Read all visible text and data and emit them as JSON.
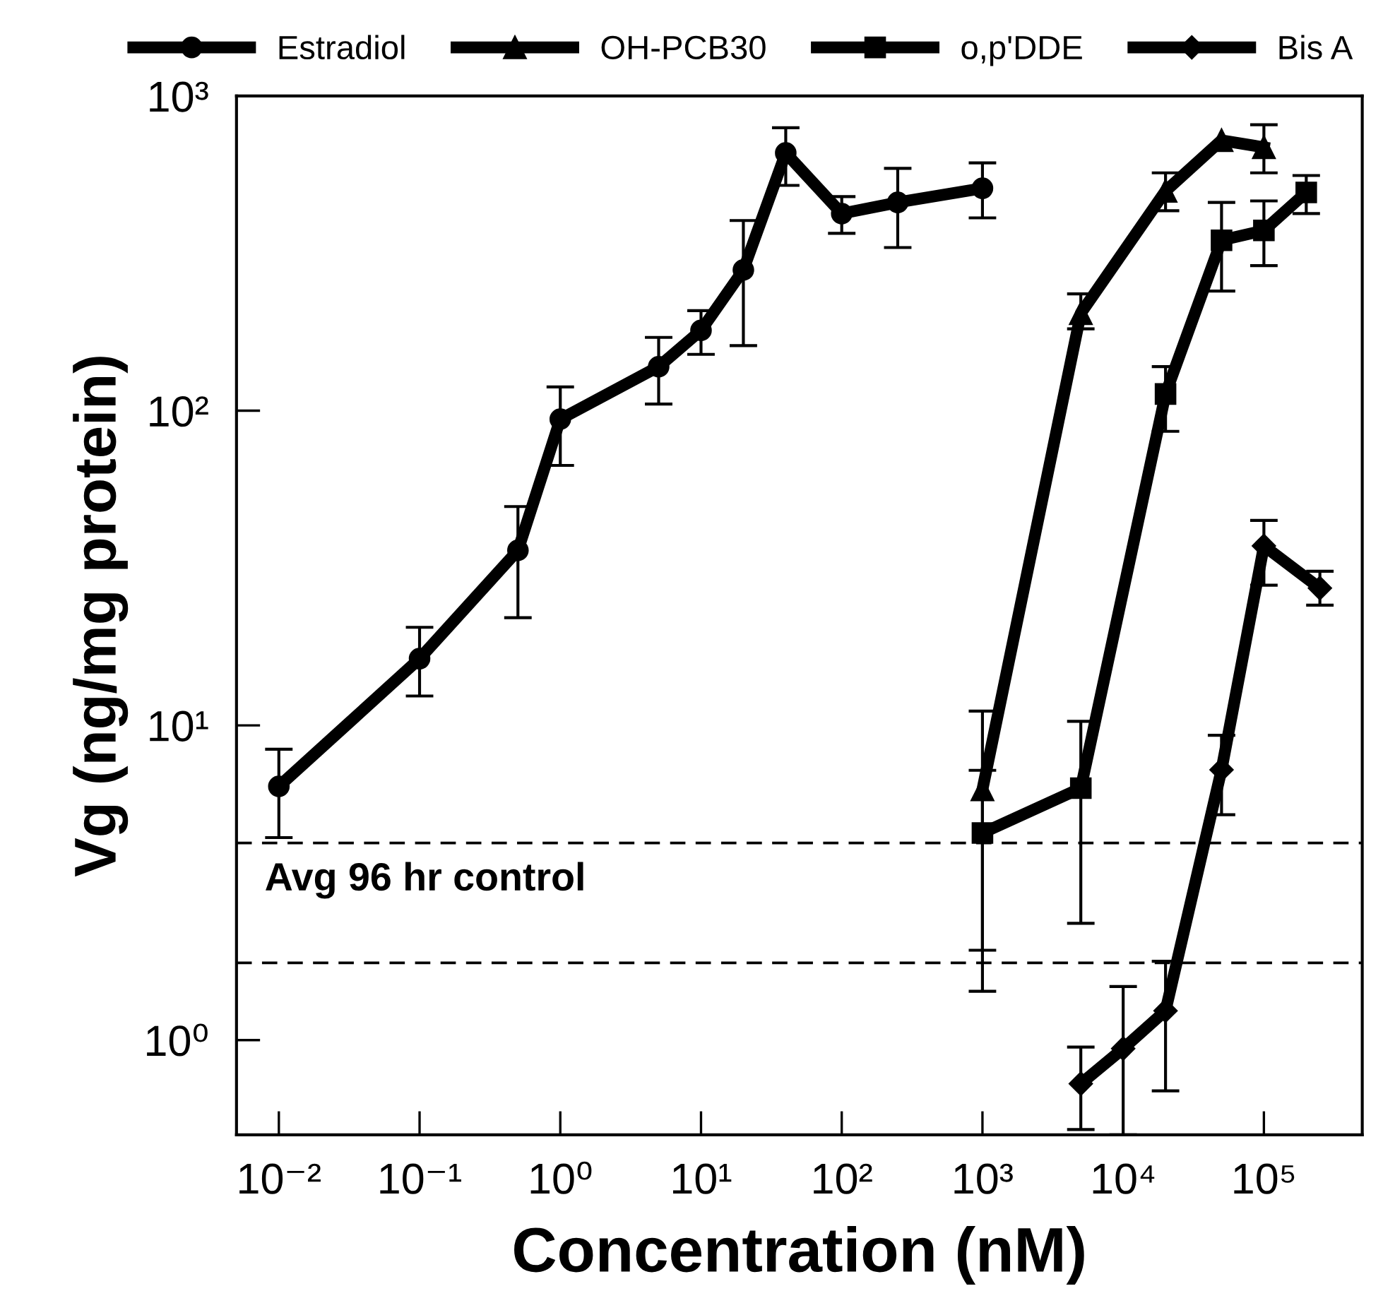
{
  "chart_data": {
    "type": "line",
    "xlabel": "Concentration (nM)",
    "ylabel": "Vg (ng/mg protein)",
    "log": "xy",
    "grid": false,
    "legend": "top",
    "line_style": "solid",
    "xlim": [
      0.005,
      500000
    ],
    "ylim": [
      0.5,
      1000
    ],
    "xticks": [
      {
        "value": 0.01,
        "label": "10⁻²"
      },
      {
        "value": 0.1,
        "label": "10⁻¹"
      },
      {
        "value": 1,
        "label": "10⁰"
      },
      {
        "value": 10,
        "label": "10¹"
      },
      {
        "value": 100,
        "label": "10²"
      },
      {
        "value": 1000,
        "label": "10³"
      },
      {
        "value": 10000,
        "label": "10⁴"
      },
      {
        "value": 100000,
        "label": "10⁵"
      }
    ],
    "yticks": [
      {
        "value": 1,
        "label": "10⁰"
      },
      {
        "value": 10,
        "label": "10¹"
      },
      {
        "value": 100,
        "label": "10²"
      },
      {
        "value": 1000,
        "label": "10³"
      }
    ],
    "series": [
      {
        "name": "Estradiol",
        "color": "#000000",
        "marker": "circle",
        "x": [
          0.01,
          0.1,
          0.5,
          1,
          5,
          10,
          20,
          40,
          100,
          250,
          1000
        ],
        "values": [
          6.4,
          16.3,
          36,
          94,
          138,
          180,
          280,
          659,
          423,
          459,
          509
        ],
        "errors": [
          [
            4.4,
            8.4
          ],
          [
            12.4,
            20.5
          ],
          [
            22,
            49.6
          ],
          [
            67,
            119
          ],
          [
            105,
            171
          ],
          [
            151,
            208
          ],
          [
            161,
            402
          ],
          [
            520,
            793
          ],
          [
            366,
            479
          ],
          [
            330,
            589
          ],
          [
            410,
            613
          ]
        ]
      },
      {
        "name": "OH-PCB30",
        "color": "#000000",
        "marker": "triangle",
        "x": [
          1000,
          5000,
          20000,
          50000,
          100000
        ],
        "values": [
          6.26,
          204,
          499,
          723,
          687
        ],
        "errors": [
          [
            1.93,
            11.1
          ],
          [
            182,
            235
          ],
          [
            432,
            570
          ],
          null,
          [
            570,
            810
          ]
        ]
      },
      {
        "name": "o,p'DDE",
        "color": "#000000",
        "marker": "square",
        "x": [
          1000,
          5000,
          20000,
          50000,
          100000,
          200000
        ],
        "values": [
          4.55,
          6.32,
          113,
          348,
          374,
          494
        ],
        "errors": [
          [
            1.43,
            7.2
          ],
          [
            2.35,
            10.3
          ],
          [
            86,
            138
          ],
          [
            240,
            459
          ],
          [
            289,
            464
          ],
          [
            423,
            559
          ]
        ]
      },
      {
        "name": "Bis A",
        "color": "#000000",
        "marker": "diamond",
        "x": [
          5000,
          10000,
          20000,
          50000,
          100000,
          250000
        ],
        "values": [
          0.727,
          0.94,
          1.24,
          7.23,
          37.2,
          27.3
        ],
        "errors": [
          [
            0.52,
            0.95
          ],
          [
            0.5,
            1.48
          ],
          [
            0.69,
            1.78
          ],
          [
            5.2,
            9.3
          ],
          [
            27.9,
            44.8
          ],
          [
            24.1,
            30.9
          ]
        ]
      }
    ],
    "ref_lines": [
      {
        "axis": "y",
        "value": 4.23,
        "line_style": "dashed",
        "color": "#000000"
      },
      {
        "axis": "y",
        "value": 1.76,
        "line_style": "dashed",
        "color": "#000000"
      }
    ],
    "annotations": [
      "Avg 96 hr control"
    ]
  }
}
